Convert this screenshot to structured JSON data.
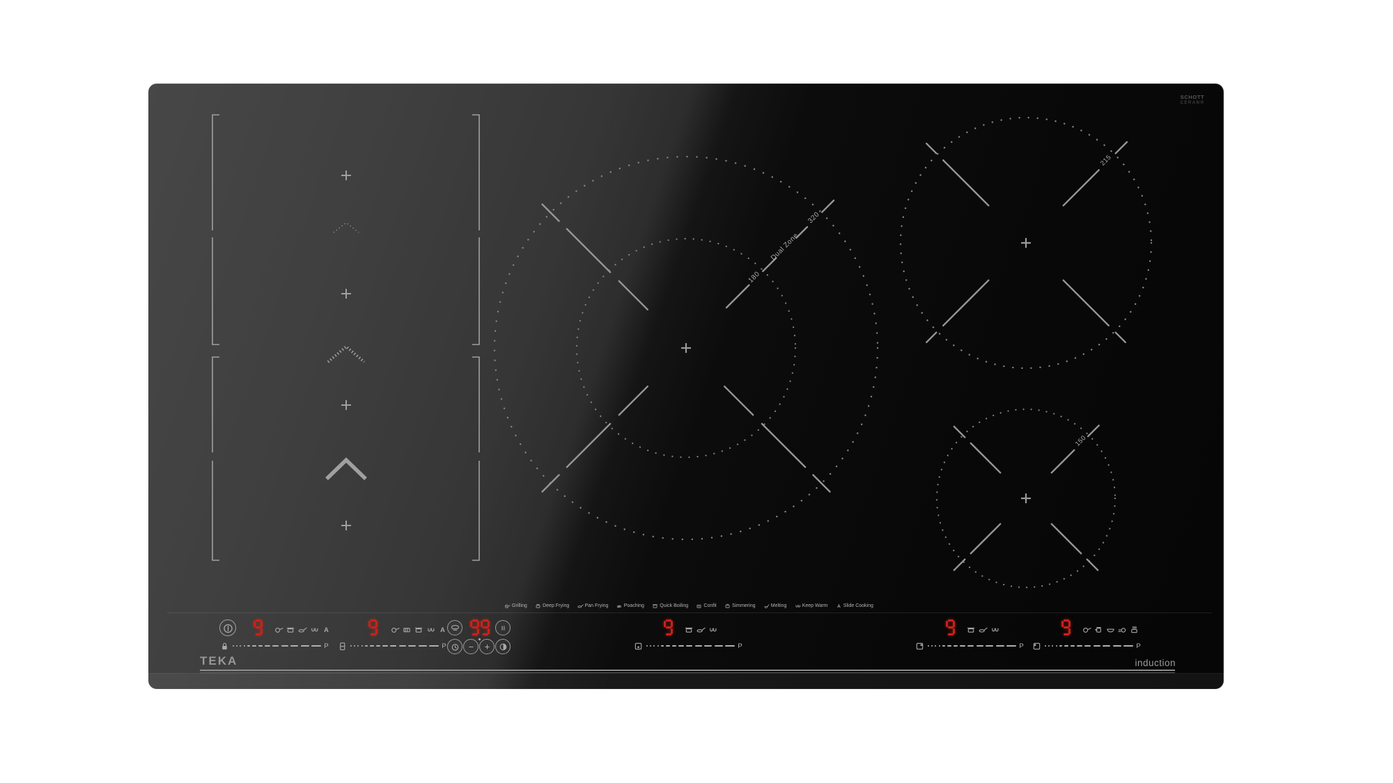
{
  "branding": {
    "logo": "TEKA",
    "product_type": "induction",
    "glass_line1": "SCHOTT",
    "glass_line2": "CERAN®"
  },
  "zone_labels": {
    "dual_inner": "180",
    "dual_name": "Dual Zone",
    "dual_outer": "320",
    "top_right": "215",
    "bottom_right": "150"
  },
  "timer": {
    "value": "99"
  },
  "functions_legend": [
    {
      "icon": "grill-pan-icon",
      "label": "Grilling"
    },
    {
      "icon": "deep-pot-icon",
      "label": "Deep Frying"
    },
    {
      "icon": "saute-pan-icon",
      "label": "Pan Frying"
    },
    {
      "icon": "poach-pan-icon",
      "label": "Poaching"
    },
    {
      "icon": "boil-pot-icon",
      "label": "Quick Boiling"
    },
    {
      "icon": "confit-pot-icon",
      "label": "Confit"
    },
    {
      "icon": "simmer-pot-icon",
      "label": "Simmering"
    },
    {
      "icon": "ladle-icon",
      "label": "Melting"
    },
    {
      "icon": "keep-warm-icon",
      "label": "Keep Warm"
    },
    {
      "icon": "auto-icon",
      "label": "Slide Cooking"
    }
  ],
  "zones_controls": [
    {
      "zone": "flex-left-front",
      "level": "9",
      "boost": "P",
      "slider_icon": "lock-icon",
      "status_icons": [
        "pan-icon",
        "pot-icon",
        "saute-pan-icon",
        "keep-warm-icon",
        "auto-icon"
      ]
    },
    {
      "zone": "flex-left-rear",
      "level": "9",
      "boost": "P",
      "slider_icon": "flex-zone-icon",
      "status_icons": [
        "pan-icon",
        "grill-icon",
        "pot-icon",
        "keep-warm-icon",
        "auto-icon"
      ]
    },
    {
      "zone": "center-dual",
      "level": "9",
      "boost": "P",
      "slider_icon": "zone-position-center-icon",
      "status_icons": [
        "pot-icon",
        "saute-pan-icon",
        "keep-warm-icon"
      ]
    },
    {
      "zone": "right-rear",
      "level": "9",
      "boost": "P",
      "slider_icon": "zone-position-rear-icon",
      "status_icons": [
        "pot-icon",
        "saute-pan-icon",
        "keep-warm-icon"
      ]
    },
    {
      "zone": "right-front",
      "level": "9",
      "boost": "P",
      "slider_icon": "zone-position-front-icon",
      "status_icons": [
        "pan-icon",
        "kettle-icon",
        "bowl-icon",
        "slide-icon",
        "steam-pot-icon"
      ]
    }
  ],
  "cluster": {
    "top_buttons": [
      "functions-button",
      "pause-button"
    ],
    "bottom_buttons": [
      "timer-button",
      "minus-button",
      "plus-button",
      "clean-lock-button"
    ]
  },
  "colors": {
    "display_red": "#c8221b",
    "marking_gray": "#9a9a9a",
    "glass_dark": "#0a0a0a",
    "glass_reflection": "#454545"
  }
}
